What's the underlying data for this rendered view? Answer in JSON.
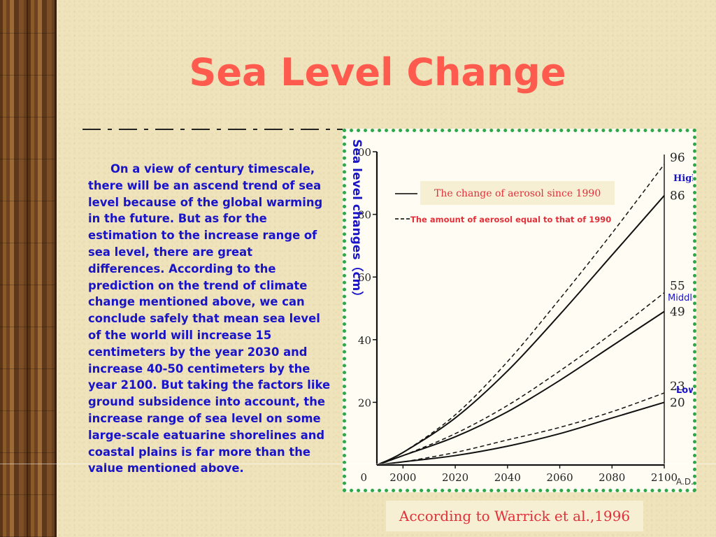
{
  "slide": {
    "title": "Sea Level Change",
    "body": "On a view of century timescale, there will be an ascend trend of sea level because of the global warming in the future. But as for the estimation to  the increase range of sea level, there are great differences. According to the prediction on the trend of climate change mentioned above, we can conclude safely that mean sea level of the world will increase 15 centimeters by the year 2030 and increase 40-50 centimeters by the year 2100. But taking the factors like ground subsidence into account, the increase range of sea level on some large-scale eatuarine shorelines and coastal plains is far more than the value mentioned above.",
    "source": "According to Warrick et al.,1996"
  },
  "colors": {
    "title": "#ff5a4e",
    "body_text": "#1a14c8",
    "frame": "#2fa64a",
    "legend_red": "#e0303a",
    "scenario_label": "#1a14c8"
  },
  "chart_data": {
    "type": "line",
    "ylabel": "Sea level changes（cm）",
    "xlabel_suffix": "A.D.",
    "x_ticks": [
      "0",
      "2000",
      "2020",
      "2040",
      "2060",
      "2080",
      "2100"
    ],
    "y_ticks": [
      "20",
      "40",
      "60",
      "80",
      "00"
    ],
    "xlim": [
      1990,
      2100
    ],
    "ylim": [
      0,
      100
    ],
    "legend": {
      "solid": "The change of aerosol since 1990",
      "dashed": "The amount of aerosol equal to that of 1990"
    },
    "scenarios": [
      "High",
      "Middle",
      "Low"
    ],
    "end_value_labels": [
      "96",
      "86",
      "55",
      "49",
      "23",
      "20"
    ],
    "series": [
      {
        "style": "dashed",
        "scenario": "High",
        "x": [
          1990,
          2000,
          2020,
          2040,
          2060,
          2080,
          2100
        ],
        "values": [
          0,
          4,
          16,
          33,
          53,
          74,
          96
        ]
      },
      {
        "style": "solid",
        "scenario": "High",
        "x": [
          1990,
          2000,
          2020,
          2040,
          2060,
          2080,
          2100
        ],
        "values": [
          0,
          4,
          15,
          30,
          48,
          67,
          86
        ]
      },
      {
        "style": "dashed",
        "scenario": "Middle",
        "x": [
          1990,
          2000,
          2020,
          2040,
          2060,
          2080,
          2100
        ],
        "values": [
          0,
          3,
          10,
          19,
          30,
          42,
          55
        ]
      },
      {
        "style": "solid",
        "scenario": "Middle",
        "x": [
          1990,
          2000,
          2020,
          2040,
          2060,
          2080,
          2100
        ],
        "values": [
          0,
          3,
          9,
          17,
          27,
          38,
          49
        ]
      },
      {
        "style": "dashed",
        "scenario": "Low",
        "x": [
          1990,
          2000,
          2020,
          2040,
          2060,
          2080,
          2100
        ],
        "values": [
          0,
          1,
          4,
          8,
          12,
          17,
          23
        ]
      },
      {
        "style": "solid",
        "scenario": "Low",
        "x": [
          1990,
          2000,
          2020,
          2040,
          2060,
          2080,
          2100
        ],
        "values": [
          0,
          1,
          3,
          6,
          10,
          15,
          20
        ]
      }
    ]
  }
}
